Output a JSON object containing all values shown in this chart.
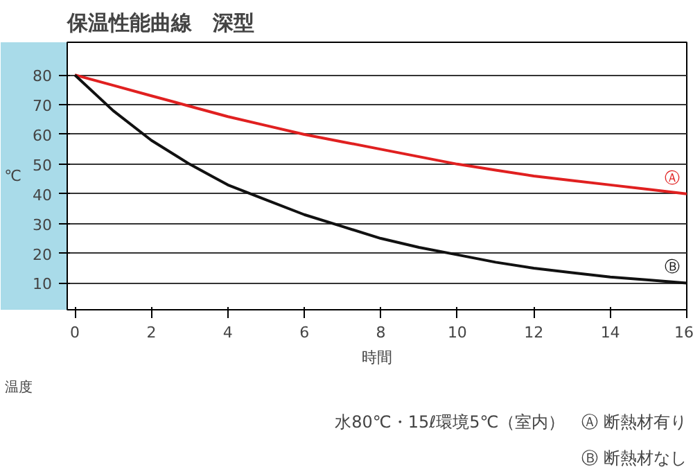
{
  "chart_data": {
    "type": "line",
    "title": "保温性能曲線　深型",
    "xlabel": "時間",
    "ylabel": "℃",
    "x": [
      0,
      1,
      2,
      3,
      4,
      5,
      6,
      7,
      8,
      9,
      10,
      11,
      12,
      13,
      14,
      15,
      16
    ],
    "series": [
      {
        "name": "Ⓐ",
        "color": "#e02020",
        "values": [
          80,
          76.5,
          73,
          69.5,
          66,
          63,
          60,
          57.5,
          55,
          52.5,
          50,
          48,
          46,
          44.5,
          43,
          41.5,
          40
        ]
      },
      {
        "name": "Ⓑ",
        "color": "#111111",
        "values": [
          80,
          68,
          58,
          50,
          43,
          38,
          33,
          29,
          25,
          22,
          19.5,
          17,
          15,
          13.5,
          12,
          11,
          10
        ]
      }
    ],
    "xlim": [
      -0.2,
      16
    ],
    "ylim": [
      1,
      91
    ],
    "xticks": [
      0,
      2,
      4,
      6,
      8,
      10,
      12,
      14,
      16
    ],
    "yticks": [
      10,
      20,
      30,
      40,
      50,
      60,
      70,
      80
    ],
    "grid": "y",
    "annotations": [
      "温度",
      "水80℃・15ℓ環境5℃（室内）　Ⓐ 断熱材有り",
      "Ⓑ 断熱材なし"
    ]
  }
}
